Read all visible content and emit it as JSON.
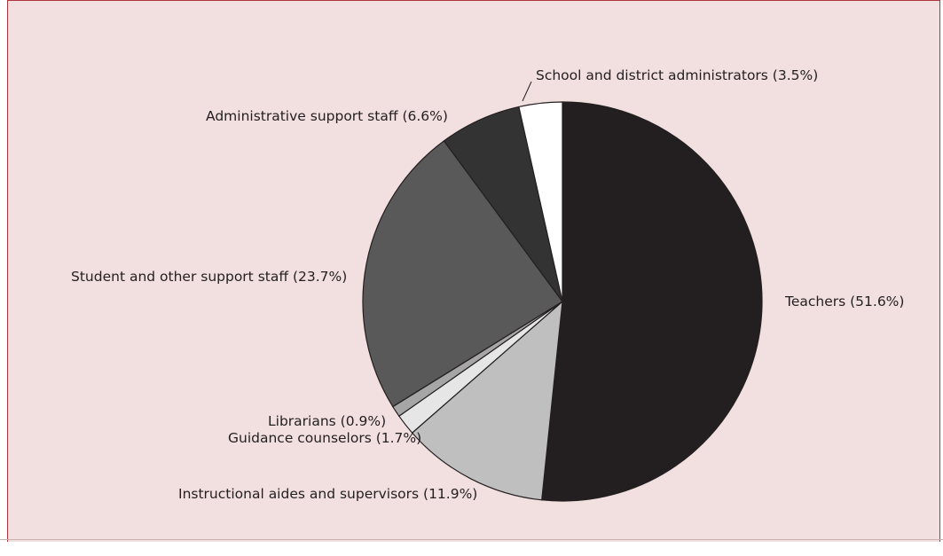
{
  "chart_data": {
    "type": "pie",
    "title": "",
    "slices": [
      {
        "label": "Teachers (51.6%)",
        "value": 51.6,
        "color": "#231f20"
      },
      {
        "label": "Instructional aides and supervisors (11.9%)",
        "value": 11.9,
        "color": "#bfbfbf"
      },
      {
        "label": "Guidance counselors (1.7%)",
        "value": 1.7,
        "color": "#e6e6e6"
      },
      {
        "label": "Librarians (0.9%)",
        "value": 0.9,
        "color": "#a6a6a6"
      },
      {
        "label": "Student and other support staff (23.7%)",
        "value": 23.7,
        "color": "#595959"
      },
      {
        "label": "Administrative support staff (6.6%)",
        "value": 6.6,
        "color": "#333333"
      },
      {
        "label": "School and district administrators (3.5%)",
        "value": 3.5,
        "color": "#ffffff"
      }
    ],
    "start_direction": "top",
    "direction": "clockwise",
    "background_color": "#f2dfdf"
  }
}
